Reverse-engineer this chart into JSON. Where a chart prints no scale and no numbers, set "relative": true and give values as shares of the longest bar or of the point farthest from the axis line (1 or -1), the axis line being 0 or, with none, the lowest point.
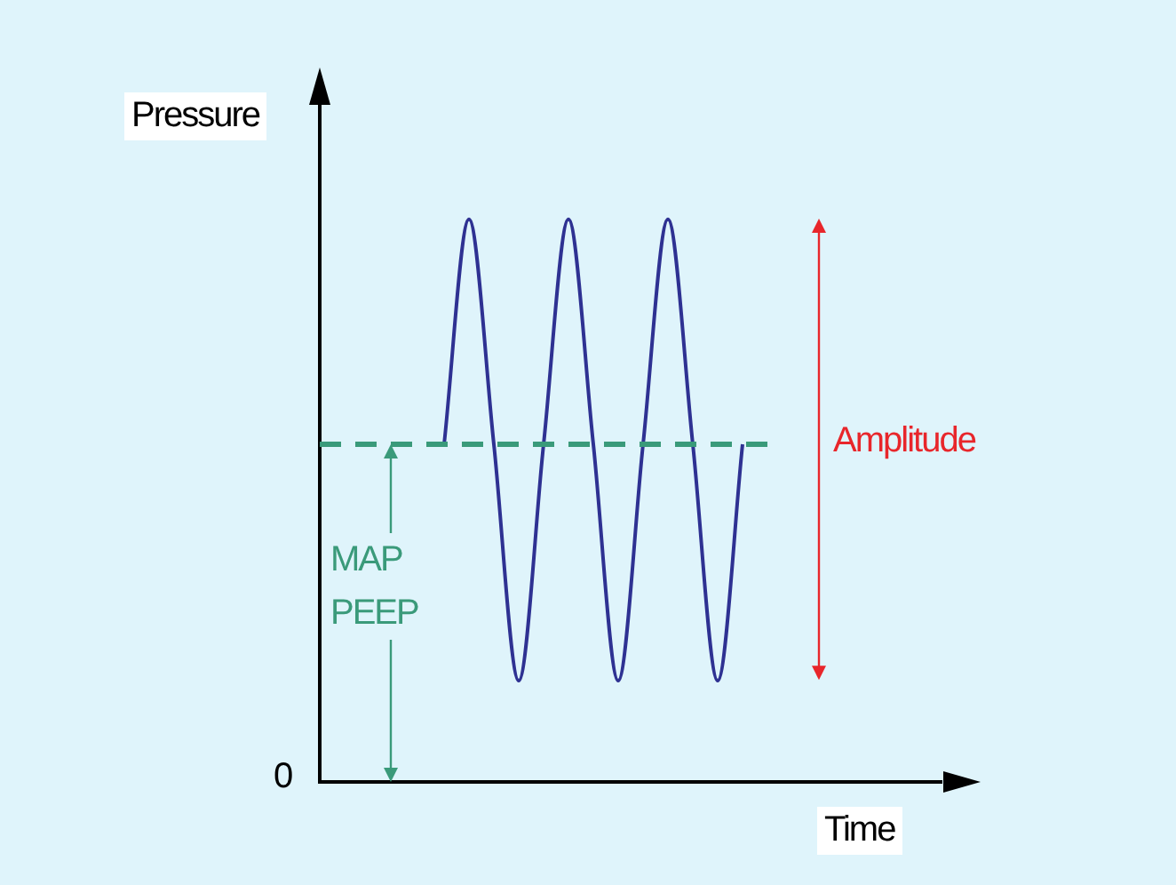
{
  "chart_data": {
    "type": "line",
    "relative": true,
    "ylabel": "Pressure",
    "xlabel": "Time",
    "categories": [
      null,
      null,
      null,
      null,
      null,
      null,
      null,
      null,
      null,
      null,
      null,
      null,
      null,
      null,
      null,
      null,
      null,
      null,
      null,
      null,
      null,
      null,
      null,
      null,
      null,
      null
    ],
    "series": [
      {
        "color": "#2e3192",
        "values": [
          null,
          null,
          null,
          null,
          null,
          0.6,
          1,
          0.6,
          0.18,
          0.6,
          1,
          0.6,
          0.18,
          0.6,
          1,
          0.6,
          0.18,
          0.6,
          null,
          null,
          null,
          null,
          null,
          null,
          null,
          null
        ]
      }
    ],
    "ref_lines": [
      {
        "axis": "y",
        "value": 0.6,
        "color": "#3a9a7a",
        "line_style": "dashed"
      }
    ],
    "annotations": [
      "0",
      "Amplitude",
      "MAP PEEP"
    ],
    "grid": false,
    "legend": false,
    "marker": "none",
    "line_style": "solid"
  }
}
